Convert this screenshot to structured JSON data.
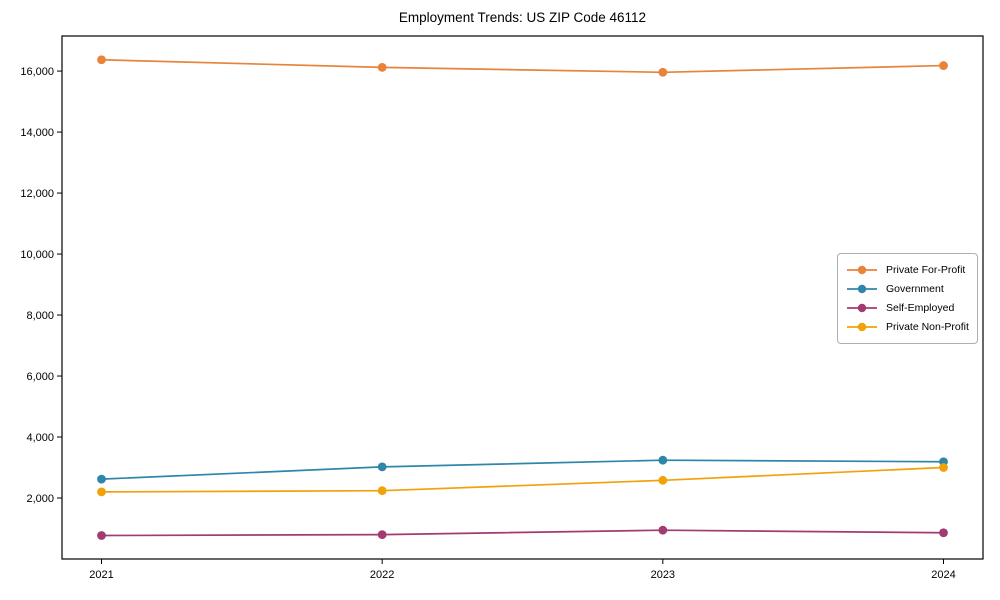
{
  "figure": {
    "background": "#ffffff",
    "frame_color": "#000000"
  },
  "chart_data": {
    "type": "line",
    "title": "Employment Trends: US ZIP Code 46112",
    "categories": [
      "2021",
      "2022",
      "2023",
      "2024"
    ],
    "series": [
      {
        "name": "Private For-Profit",
        "color": "#E8833A",
        "values": [
          16370,
          16120,
          15960,
          16180
        ]
      },
      {
        "name": "Government",
        "color": "#2E86AB",
        "values": [
          2620,
          3020,
          3240,
          3190
        ]
      },
      {
        "name": "Self-Employed",
        "color": "#A23B72",
        "values": [
          770,
          800,
          945,
          860
        ]
      },
      {
        "name": "Private Non-Profit",
        "color": "#F1A208",
        "values": [
          2200,
          2240,
          2580,
          3000
        ]
      }
    ],
    "xlabel": "",
    "ylabel": "",
    "ylim": [
      0,
      17150
    ],
    "yticks": [
      2000,
      4000,
      6000,
      8000,
      10000,
      12000,
      14000,
      16000
    ],
    "ytick_labels": [
      "2,000",
      "4,000",
      "6,000",
      "8,000",
      "10,000",
      "12,000",
      "14,000",
      "16,000"
    ],
    "grid": false,
    "marker": "circle",
    "legend_position": "center-right"
  }
}
